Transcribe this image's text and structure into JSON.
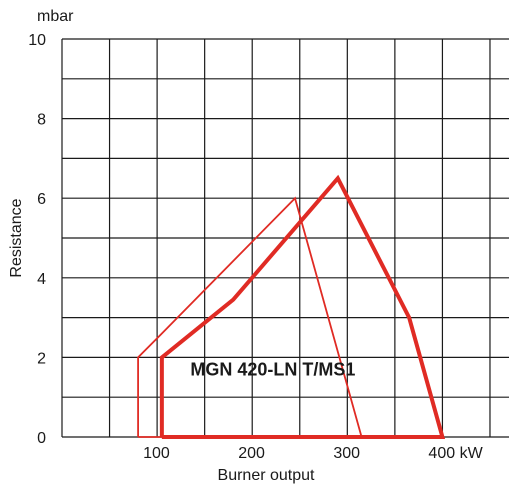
{
  "chart_data": {
    "type": "line",
    "xlabel": "Burner output",
    "ylabel": "Resistance",
    "y_unit_label": "mbar",
    "x_unit_label": "kW",
    "xlim": [
      0,
      470
    ],
    "ylim": [
      0,
      10
    ],
    "x_tick_values": [
      100,
      200,
      300,
      400
    ],
    "x_tick_labels": [
      "100",
      "200",
      "300",
      "400 kW"
    ],
    "y_tick_values": [
      0,
      2,
      4,
      6,
      8,
      10
    ],
    "y_tick_labels": [
      "0",
      "2",
      "4",
      "6",
      "8",
      "10"
    ],
    "grid": true,
    "colors": {
      "series": "#e02b24",
      "grid": "#1a1a1a",
      "text": "#1a1a1a"
    },
    "series": [
      {
        "style": "thin",
        "x": [
          80,
          80,
          105,
          245,
          315,
          80
        ],
        "y": [
          0,
          2,
          2.6,
          6,
          0,
          0
        ]
      },
      {
        "style": "thick",
        "x": [
          105,
          105,
          180,
          290,
          365,
          400,
          105
        ],
        "y": [
          0,
          2,
          3.45,
          6.5,
          3,
          0,
          0
        ]
      }
    ],
    "annotations": [
      {
        "text": "MGN 420-LN T/MS1",
        "x": 135,
        "y": 1.55
      }
    ]
  }
}
